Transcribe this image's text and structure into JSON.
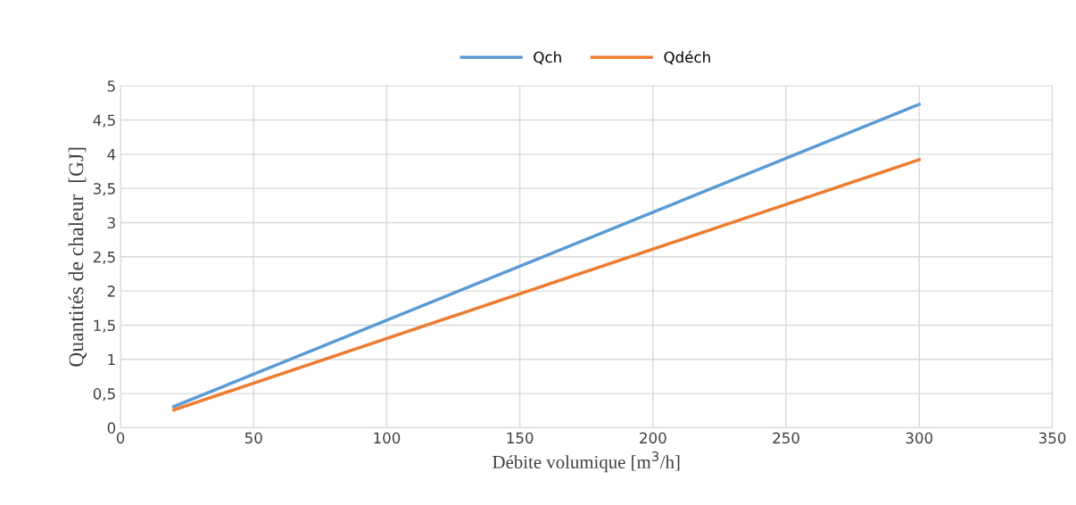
{
  "chart_data": {
    "type": "line",
    "xlabel": "Débite volumique [m$^{3}$/h]",
    "ylabel": "Quantités de chaleur  [GJ]",
    "x": [
      20,
      300
    ],
    "series": [
      {
        "name": "Qch",
        "color": "#5b9bd5",
        "values": [
          0.31,
          4.73
        ]
      },
      {
        "name": "Qdéch",
        "color": "#ed7d31",
        "values": [
          0.26,
          3.92
        ]
      }
    ],
    "xlim": [
      0,
      350
    ],
    "xticks": [
      0,
      50,
      100,
      150,
      200,
      250,
      300,
      350
    ],
    "ylim": [
      0,
      5
    ],
    "yticks": [
      0,
      {
        "value": 0.5,
        "label": "0,5"
      },
      1,
      {
        "value": 1.5,
        "label": "1,5"
      },
      2,
      {
        "value": 2.5,
        "label": "2,5"
      },
      3,
      {
        "value": 3.5,
        "label": "3,5"
      },
      4,
      {
        "value": 4.5,
        "label": "4,5"
      },
      5
    ],
    "grid": true,
    "legend": "top",
    "marker": "none",
    "line_style": "solid"
  }
}
